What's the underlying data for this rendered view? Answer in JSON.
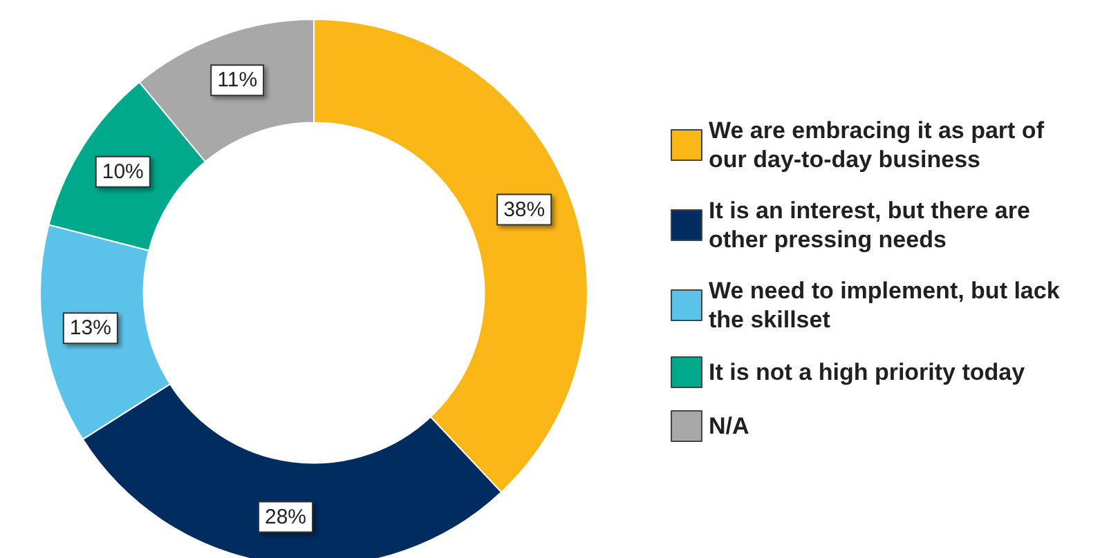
{
  "chart_data": {
    "type": "donut",
    "categories": [
      "We are embracing it as part of our day-to-day business",
      "It is an interest, but there are other pressing needs",
      "We need to implement, but lack the skillset",
      "It is not a high priority today",
      "N/A"
    ],
    "values": [
      38,
      28,
      13,
      10,
      11
    ],
    "value_labels": [
      "38%",
      "28%",
      "13%",
      "10%",
      "11%"
    ],
    "colors": [
      "#fbb718",
      "#012c5f",
      "#5bc3ea",
      "#00a98c",
      "#a8a8a8"
    ],
    "legend": "right"
  }
}
